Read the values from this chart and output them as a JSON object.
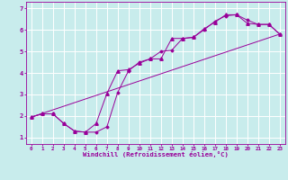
{
  "xlabel": "Windchill (Refroidissement éolien,°C)",
  "bg_color": "#c8ecec",
  "grid_color": "#ffffff",
  "line_color": "#990099",
  "xlim": [
    -0.5,
    23.5
  ],
  "ylim": [
    0.7,
    7.3
  ],
  "xticks": [
    0,
    1,
    2,
    3,
    4,
    5,
    6,
    7,
    8,
    9,
    10,
    11,
    12,
    13,
    14,
    15,
    16,
    17,
    18,
    19,
    20,
    21,
    22,
    23
  ],
  "yticks": [
    1,
    2,
    3,
    4,
    5,
    6,
    7
  ],
  "curve1_x": [
    0,
    1,
    2,
    3,
    4,
    5,
    6,
    7,
    8,
    9,
    10,
    11,
    12,
    13,
    14,
    15,
    16,
    17,
    18,
    19,
    20,
    21,
    22,
    23
  ],
  "curve1_y": [
    1.95,
    2.1,
    2.1,
    1.65,
    1.3,
    1.25,
    1.65,
    3.05,
    4.1,
    4.15,
    4.45,
    4.65,
    4.65,
    5.6,
    5.6,
    5.65,
    6.05,
    6.35,
    6.7,
    6.7,
    6.3,
    6.25,
    6.25,
    5.8
  ],
  "curve2_x": [
    0,
    1,
    2,
    3,
    4,
    5,
    6,
    7,
    8,
    9,
    10,
    11,
    12,
    13,
    14,
    15,
    16,
    17,
    18,
    19,
    20,
    21,
    22,
    23
  ],
  "curve2_y": [
    1.95,
    2.1,
    2.1,
    1.65,
    1.3,
    1.25,
    1.25,
    1.5,
    3.1,
    4.1,
    4.5,
    4.65,
    5.0,
    5.05,
    5.6,
    5.65,
    6.0,
    6.4,
    6.65,
    6.7,
    6.45,
    6.25,
    6.25,
    5.8
  ],
  "line_x": [
    0,
    23
  ],
  "line_y": [
    1.95,
    5.8
  ]
}
